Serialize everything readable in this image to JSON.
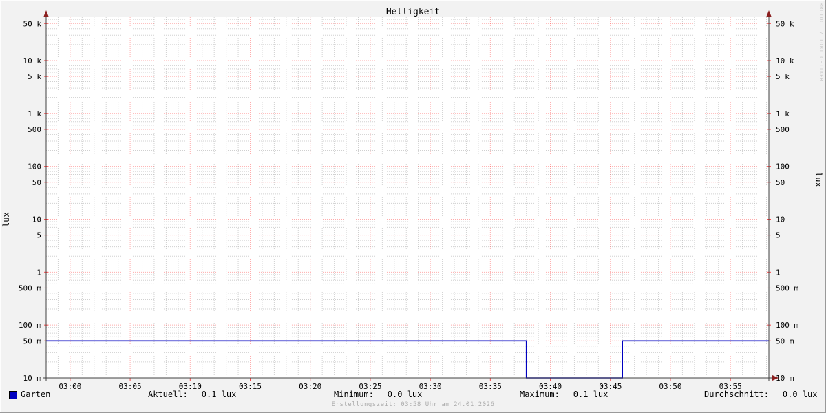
{
  "title": "Helligkeit",
  "axis_left_label": "lux",
  "axis_right_label": "lux",
  "watermark": "RRDTOOL / TOBI OETIKER",
  "footer": "Erstellungszeit: 03:58 Uhr am 24.01.2026",
  "legend": {
    "series_label": "Garten",
    "series_color": "#0000c0",
    "stats": [
      {
        "label": "Aktuell:",
        "value": "0.1 lux"
      },
      {
        "label": "Minimum:",
        "value": "0.0 lux"
      },
      {
        "label": "Maximum:",
        "value": "0.1 lux"
      },
      {
        "label": "Durchschnitt:",
        "value": "0.0 lux"
      }
    ]
  },
  "colors": {
    "background": "#f2f2f2",
    "canvas": "#ffffff",
    "axis": "#404040",
    "arrow": "#8b1f1f",
    "grid_major": "#ff0000",
    "grid_minor": "#aaaaaa",
    "bevel_light": "#fdfdfd",
    "bevel_dark": "#9a9a9a",
    "tick_label": "#000000"
  },
  "chart_data": {
    "type": "line",
    "title": "Helligkeit",
    "ylabel": "lux",
    "yscale": "log",
    "ylim": [
      0.01,
      66000
    ],
    "yticks": [
      {
        "v": 0.01,
        "label": "10 m"
      },
      {
        "v": 0.05,
        "label": "50 m"
      },
      {
        "v": 0.1,
        "label": "100 m"
      },
      {
        "v": 0.5,
        "label": "500 m"
      },
      {
        "v": 1,
        "label": "1"
      },
      {
        "v": 5,
        "label": "5"
      },
      {
        "v": 10,
        "label": "10"
      },
      {
        "v": 50,
        "label": "50"
      },
      {
        "v": 100,
        "label": "100"
      },
      {
        "v": 500,
        "label": "500"
      },
      {
        "v": 1000,
        "label": "1 k"
      },
      {
        "v": 5000,
        "label": "5 k"
      },
      {
        "v": 10000,
        "label": "10 k"
      },
      {
        "v": 50000,
        "label": "50 k"
      }
    ],
    "xlim_minutes": [
      -2,
      58.2
    ],
    "x_minor_step_minutes": 1,
    "xticks": [
      {
        "t": 0,
        "label": "03:00"
      },
      {
        "t": 5,
        "label": "03:05"
      },
      {
        "t": 10,
        "label": "03:10"
      },
      {
        "t": 15,
        "label": "03:15"
      },
      {
        "t": 20,
        "label": "03:20"
      },
      {
        "t": 25,
        "label": "03:25"
      },
      {
        "t": 30,
        "label": "03:30"
      },
      {
        "t": 35,
        "label": "03:35"
      },
      {
        "t": 40,
        "label": "03:40"
      },
      {
        "t": 45,
        "label": "03:45"
      },
      {
        "t": 50,
        "label": "03:50"
      },
      {
        "t": 55,
        "label": "03:55"
      }
    ],
    "legend_position": "bottom",
    "grid": "on",
    "series": [
      {
        "name": "Garten",
        "color": "#0000c0",
        "points_t_value": [
          [
            -2,
            0.05
          ],
          [
            38,
            0.05
          ],
          [
            38,
            0
          ],
          [
            46,
            0
          ],
          [
            46,
            0.05
          ],
          [
            58.2,
            0.05
          ]
        ]
      }
    ]
  }
}
